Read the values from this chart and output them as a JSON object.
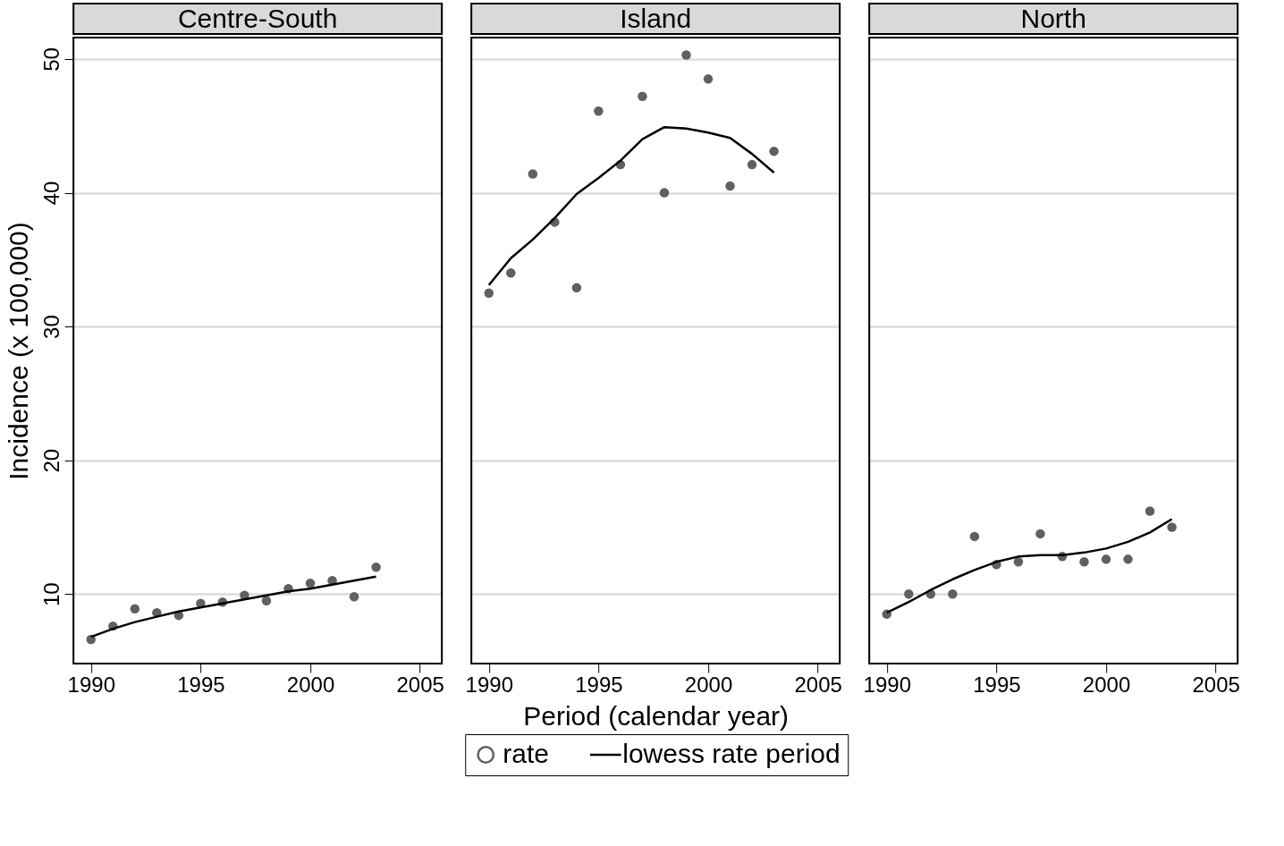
{
  "chart_data": [
    {
      "type": "scatter",
      "title": "Centre-South",
      "ylabel": "Incidence (x 100,000)",
      "grid": "y",
      "legend": "bottom",
      "xlim": [
        1989.2,
        2006
      ],
      "xticks": [
        1990,
        1995,
        2000,
        2005
      ],
      "ylim": [
        4.8,
        51.6
      ],
      "yticks": [
        10,
        20,
        30,
        40,
        50
      ],
      "x": [
        1990,
        1991,
        1992,
        1993,
        1994,
        1995,
        1996,
        1997,
        1998,
        1999,
        2000,
        2001,
        2002,
        2003
      ],
      "series": [
        {
          "name": "rate",
          "marker": "circle",
          "color": "#606060",
          "values": [
            6.6,
            7.6,
            8.9,
            8.6,
            8.4,
            9.3,
            9.4,
            9.9,
            9.5,
            10.4,
            10.8,
            11.0,
            9.8,
            12.0
          ]
        },
        {
          "name": "lowess rate period",
          "type": "line",
          "marker": "none",
          "color": "#000000",
          "values": [
            6.8,
            7.4,
            7.9,
            8.3,
            8.7,
            9.0,
            9.3,
            9.6,
            9.9,
            10.2,
            10.4,
            10.7,
            11.0,
            11.3
          ]
        }
      ]
    },
    {
      "type": "scatter",
      "title": "Island",
      "xlabel": "Period (calendar year)",
      "tick_labels": "x",
      "grid": "y",
      "xlim": [
        1989.2,
        2006
      ],
      "xticks": [
        1990,
        1995,
        2000,
        2005
      ],
      "ylim": [
        4.8,
        51.6
      ],
      "yticks": [
        10,
        20,
        30,
        40,
        50
      ],
      "x": [
        1990,
        1991,
        1992,
        1993,
        1994,
        1995,
        1996,
        1997,
        1998,
        1999,
        2000,
        2001,
        2002,
        2003
      ],
      "series": [
        {
          "marker": "circle",
          "color": "#606060",
          "values": [
            32.5,
            34.0,
            41.4,
            37.8,
            32.9,
            46.1,
            42.1,
            47.2,
            40.0,
            50.3,
            48.5,
            40.5,
            42.1,
            43.1
          ]
        },
        {
          "type": "line",
          "marker": "none",
          "color": "#000000",
          "values": [
            33.1,
            35.1,
            36.5,
            38.1,
            39.9,
            41.1,
            42.4,
            44.0,
            44.9,
            44.8,
            44.5,
            44.1,
            42.9,
            41.5
          ]
        }
      ]
    },
    {
      "type": "scatter",
      "title": "North",
      "tick_labels": "x",
      "grid": "y",
      "xlim": [
        1989.2,
        2006
      ],
      "xticks": [
        1990,
        1995,
        2000,
        2005
      ],
      "ylim": [
        4.8,
        51.6
      ],
      "yticks": [
        10,
        20,
        30,
        40,
        50
      ],
      "x": [
        1990,
        1991,
        1992,
        1993,
        1994,
        1995,
        1996,
        1997,
        1998,
        1999,
        2000,
        2001,
        2002,
        2003
      ],
      "series": [
        {
          "marker": "circle",
          "color": "#606060",
          "values": [
            8.5,
            10.0,
            10.0,
            10.0,
            14.3,
            12.2,
            12.4,
            14.5,
            12.8,
            12.4,
            12.6,
            12.6,
            16.2,
            15.0
          ]
        },
        {
          "type": "line",
          "marker": "none",
          "color": "#000000",
          "values": [
            8.6,
            9.4,
            10.3,
            11.1,
            11.8,
            12.4,
            12.8,
            12.9,
            12.9,
            13.1,
            13.4,
            13.9,
            14.6,
            15.6
          ]
        }
      ]
    }
  ]
}
